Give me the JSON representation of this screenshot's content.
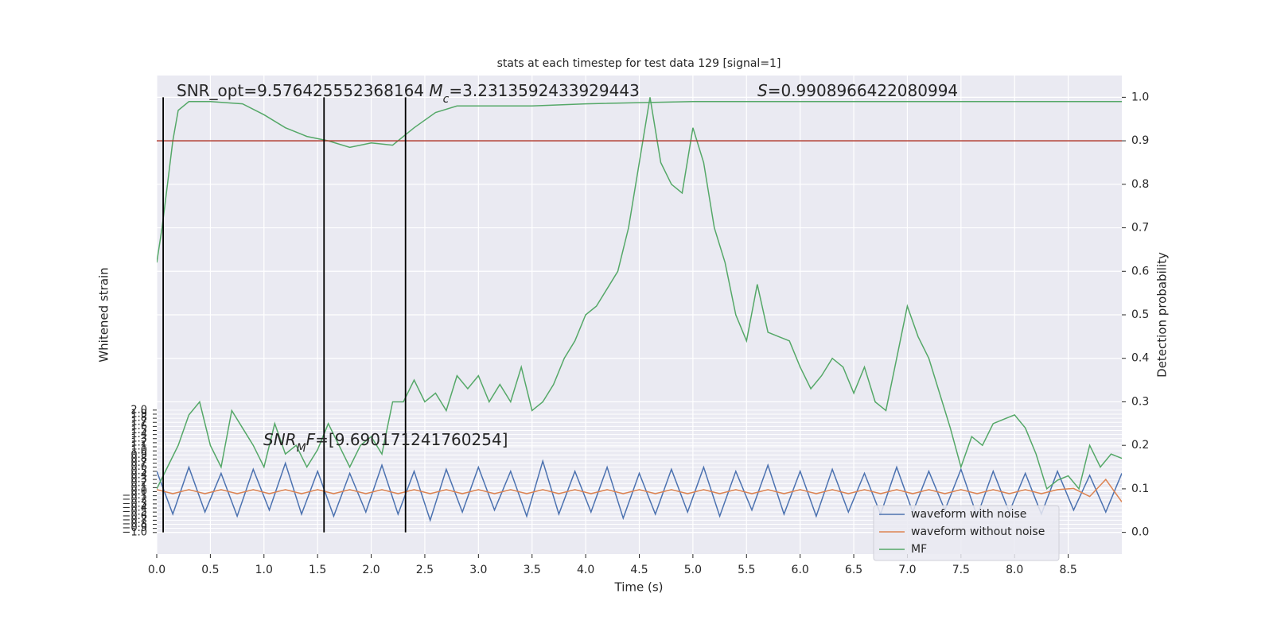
{
  "chart_data": {
    "type": "line",
    "title": "stats at each timestep for test data 129 [signal=1]",
    "xlabel": "Time (s)",
    "ylabel": "Whitened strain",
    "y2label": "Detection probability",
    "xlim": [
      0,
      9
    ],
    "ylim": [
      -1.53,
      10.2
    ],
    "y2lim": [
      -0.05,
      1.05
    ],
    "grid": true,
    "legend": "lower right",
    "xticks": [
      {
        "value": 0,
        "label": "0.0"
      },
      0.5,
      {
        "value": 1,
        "label": "1.0"
      },
      1.5,
      {
        "value": 2,
        "label": "2.0"
      },
      2.5,
      {
        "value": 3,
        "label": "3.0"
      },
      3.5,
      {
        "value": 4,
        "label": "4.0"
      },
      4.5,
      {
        "value": 5,
        "label": "5.0"
      },
      5.5,
      {
        "value": 6,
        "label": "6.0"
      },
      6.5,
      {
        "value": 7,
        "label": "7.0"
      },
      7.5,
      {
        "value": 8,
        "label": "8.0"
      },
      8.5
    ],
    "yticks": [
      {
        "value": -1,
        "label": "−1.0"
      },
      {
        "value": -0.9,
        "label": "−0.9"
      },
      {
        "value": -0.8,
        "label": "−0.8"
      },
      {
        "value": -0.7,
        "label": "−0.7"
      },
      {
        "value": -0.6,
        "label": "−0.6"
      },
      {
        "value": -0.5,
        "label": "−0.5"
      },
      {
        "value": -0.4,
        "label": "−0.4"
      },
      {
        "value": -0.3,
        "label": "−0.3"
      },
      {
        "value": -0.2,
        "label": "−0.2"
      },
      {
        "value": -0.1,
        "label": "−0.1"
      },
      {
        "value": 0,
        "label": "0.0"
      },
      0.1,
      0.2,
      0.3,
      0.4,
      0.5,
      0.6,
      0.7,
      0.8,
      0.9,
      {
        "value": 1,
        "label": "1.0"
      },
      1.1,
      1.2,
      1.3,
      1.4,
      1.5,
      1.6,
      1.7,
      1.8,
      1.9,
      {
        "value": 2,
        "label": "2.0"
      }
    ],
    "y2ticks": [
      {
        "value": 0,
        "label": "0.0"
      },
      0.1,
      0.2,
      0.3,
      0.4,
      0.5,
      0.6,
      0.7,
      0.8,
      0.9,
      {
        "value": 1,
        "label": "1.0"
      }
    ],
    "x": [
      0,
      0.15,
      0.3,
      0.45,
      0.6,
      0.75,
      0.9,
      1.05,
      1.2,
      1.35,
      1.5,
      1.65,
      1.8,
      1.95,
      2.1,
      2.25,
      2.4,
      2.55,
      2.7,
      2.85,
      3,
      3.15,
      3.3,
      3.45,
      3.6,
      3.75,
      3.9,
      4.05,
      4.2,
      4.35,
      4.5,
      4.65,
      4.8,
      4.95,
      5.1,
      5.25,
      5.4,
      5.55,
      5.7,
      5.85,
      6,
      6.15,
      6.3,
      6.45,
      6.6,
      6.75,
      6.9,
      7.05,
      7.2,
      7.35,
      7.5,
      7.65,
      7.8,
      7.95,
      8.1,
      8.25,
      8.4,
      8.55,
      8.7,
      8.85,
      9
    ],
    "series": [
      {
        "name": "waveform with noise",
        "color": "#4c72b0",
        "values": [
          0.5,
          -0.55,
          0.6,
          -0.5,
          0.45,
          -0.6,
          0.55,
          -0.45,
          0.7,
          -0.55,
          0.5,
          -0.6,
          0.45,
          -0.5,
          0.65,
          -0.55,
          0.5,
          -0.7,
          0.55,
          -0.5,
          0.6,
          -0.45,
          0.5,
          -0.6,
          0.75,
          -0.55,
          0.5,
          -0.5,
          0.6,
          -0.65,
          0.45,
          -0.55,
          0.55,
          -0.5,
          0.6,
          -0.6,
          0.5,
          -0.45,
          0.65,
          -0.55,
          0.5,
          -0.6,
          0.55,
          -0.5,
          0.45,
          -0.55,
          0.6,
          -0.5,
          0.5,
          -0.45,
          0.55,
          -0.6,
          0.5,
          -0.5,
          0.45,
          -0.55,
          0.5,
          -0.45,
          0.4,
          -0.5,
          0.45
        ]
      },
      {
        "name": "waveform without noise",
        "color": "#dd8452",
        "values": [
          0.05,
          -0.05,
          0.05,
          -0.05,
          0.05,
          -0.05,
          0.05,
          -0.05,
          0.05,
          -0.05,
          0.05,
          -0.05,
          0.05,
          -0.05,
          0.05,
          -0.05,
          0.05,
          -0.05,
          0.05,
          -0.05,
          0.05,
          -0.05,
          0.05,
          -0.05,
          0.05,
          -0.05,
          0.05,
          -0.05,
          0.05,
          -0.05,
          0.05,
          -0.05,
          0.05,
          -0.05,
          0.05,
          -0.05,
          0.05,
          -0.05,
          0.05,
          -0.05,
          0.05,
          -0.05,
          0.05,
          -0.05,
          0.05,
          -0.05,
          0.05,
          -0.05,
          0.05,
          -0.05,
          0.05,
          -0.05,
          0.05,
          -0.05,
          0.05,
          -0.05,
          0.05,
          0.08,
          -0.12,
          0.3,
          -0.25
        ]
      },
      {
        "name": "MF",
        "color": "#55a868",
        "axis": "y2",
        "x": [
          0,
          0.1,
          0.2,
          0.3,
          0.4,
          0.5,
          0.6,
          0.7,
          0.8,
          0.9,
          1,
          1.1,
          1.2,
          1.3,
          1.4,
          1.5,
          1.6,
          1.7,
          1.8,
          1.9,
          2,
          2.1,
          2.2,
          2.3,
          2.4,
          2.5,
          2.6,
          2.7,
          2.8,
          2.9,
          3,
          3.1,
          3.2,
          3.3,
          3.4,
          3.5,
          3.6,
          3.7,
          3.8,
          3.9,
          4,
          4.1,
          4.2,
          4.3,
          4.4,
          4.5,
          4.6,
          4.7,
          4.8,
          4.9,
          5,
          5.1,
          5.2,
          5.3,
          5.4,
          5.5,
          5.6,
          5.7,
          5.8,
          5.9,
          6,
          6.1,
          6.2,
          6.3,
          6.4,
          6.5,
          6.6,
          6.7,
          6.8,
          6.9,
          7,
          7.1,
          7.2,
          7.3,
          7.4,
          7.5,
          7.6,
          7.7,
          7.8,
          7.9,
          8,
          8.1,
          8.2,
          8.3,
          8.4,
          8.5,
          8.6,
          8.7,
          8.8,
          8.9,
          9
        ],
        "values": [
          0.1,
          0.15,
          0.2,
          0.27,
          0.3,
          0.2,
          0.15,
          0.28,
          0.24,
          0.2,
          0.15,
          0.25,
          0.18,
          0.2,
          0.15,
          0.19,
          0.25,
          0.2,
          0.15,
          0.2,
          0.22,
          0.18,
          0.3,
          0.3,
          0.35,
          0.3,
          0.32,
          0.28,
          0.36,
          0.33,
          0.36,
          0.3,
          0.34,
          0.3,
          0.38,
          0.28,
          0.3,
          0.34,
          0.4,
          0.44,
          0.5,
          0.52,
          0.56,
          0.6,
          0.7,
          0.85,
          1.0,
          0.85,
          0.8,
          0.78,
          0.93,
          0.85,
          0.7,
          0.62,
          0.5,
          0.44,
          0.57,
          0.46,
          0.45,
          0.44,
          0.38,
          0.33,
          0.36,
          0.4,
          0.38,
          0.32,
          0.38,
          0.3,
          0.28,
          0.4,
          0.52,
          0.45,
          0.4,
          0.32,
          0.24,
          0.15,
          0.22,
          0.2,
          0.25,
          0.26,
          0.27,
          0.24,
          0.18,
          0.1,
          0.12,
          0.13,
          0.1,
          0.2,
          0.15,
          0.18,
          0.17
        ]
      },
      {
        "color": "#55a868",
        "axis": "y2",
        "x": [
          0,
          0.05,
          0.1,
          0.15,
          0.2,
          0.3,
          0.5,
          0.8,
          1,
          1.2,
          1.4,
          1.6,
          1.8,
          2,
          2.2,
          2.4,
          2.6,
          2.8,
          3,
          3.5,
          4,
          5,
          6,
          7,
          8,
          9
        ],
        "values": [
          0.62,
          0.7,
          0.8,
          0.9,
          0.97,
          0.99,
          0.99,
          0.985,
          0.96,
          0.93,
          0.91,
          0.9,
          0.885,
          0.895,
          0.89,
          0.93,
          0.965,
          0.98,
          0.98,
          0.98,
          0.985,
          0.99,
          0.99,
          0.99,
          0.99,
          0.99
        ]
      }
    ],
    "threshold": {
      "value": 0.9,
      "color": "#b03a2e"
    },
    "vlines": {
      "x": [
        0.06,
        1.56,
        2.32
      ],
      "y2": [
        0,
        1
      ],
      "color": "#000000"
    },
    "annotations": [
      [
        {
          "t": "SNR_opt=9.576425552368164 "
        },
        {
          "t": "M",
          "style": "italic"
        },
        {
          "t": "c",
          "style": "sub"
        },
        {
          "t": "=3.2313592433929443"
        }
      ],
      [
        {
          "t": "S",
          "style": "italic"
        },
        {
          "t": "=0.9908966422080994"
        }
      ],
      [
        {
          "t": "SNR",
          "style": "italic"
        },
        {
          "t": "M",
          "style": "sub"
        },
        {
          "t": "F",
          "style": "italic"
        },
        {
          "t": "=[9.690171241760254]"
        }
      ]
    ]
  }
}
